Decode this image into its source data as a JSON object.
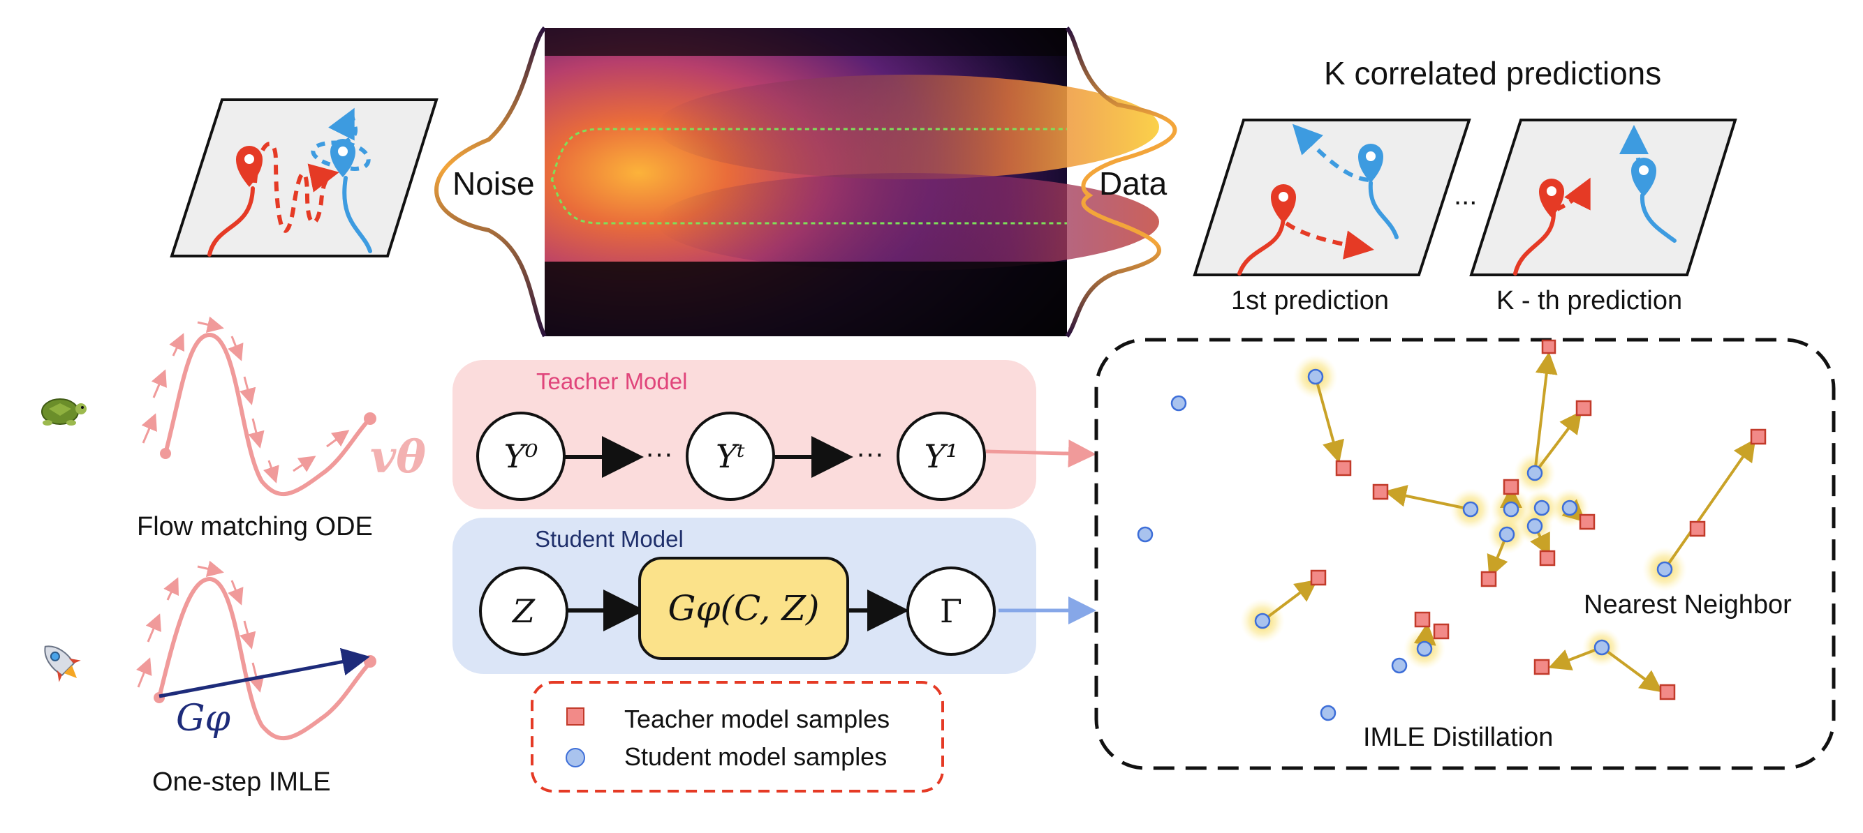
{
  "top": {
    "noise_label": "Noise",
    "data_label": "Data",
    "k_title": "K correlated predictions",
    "pred1_label": "1st prediction",
    "predk_label": "K - th prediction",
    "ellipsis": "..."
  },
  "left": {
    "flow_label": "Flow matching ODE",
    "imle_label": "One-step IMLE",
    "v_theta": "vθ",
    "g_phi": "Gφ",
    "turtle_icon": "turtle-icon",
    "rocket_icon": "rocket-icon"
  },
  "teacher": {
    "title": "Teacher Model",
    "y0": "Y⁰",
    "yt": "Yᵗ",
    "y1": "Y¹",
    "dots": "···",
    "color": "#fbdcdc"
  },
  "student": {
    "title": "Student Model",
    "z": "Z",
    "g": "Gφ(C, Z)",
    "gamma": "Γ",
    "color": "#dbe5f7"
  },
  "legend": {
    "teacher_samples": "Teacher model samples",
    "student_samples": "Student model samples"
  },
  "imle": {
    "nearest_neighbor": "Nearest Neighbor",
    "title": "IMLE Distillation"
  },
  "colors": {
    "teacher_title": "#e0457b",
    "student_title": "#1f2f6b",
    "red_sample": "#f28a88",
    "blue_sample": "#a9c3ee",
    "arrow_gold": "#c9a227",
    "flow_pink": "#f09a9a"
  }
}
